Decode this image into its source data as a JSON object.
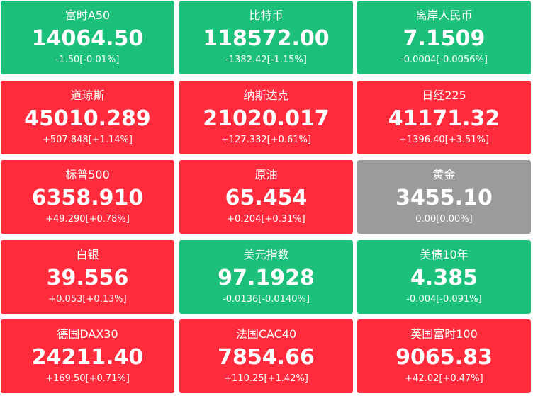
{
  "tiles": [
    {
      "name": "富时A50",
      "price": "14064.50",
      "change": "-1.50[-0.01%]",
      "trend": "down"
    },
    {
      "name": "比特币",
      "price": "118572.00",
      "change": "-1382.42[-1.15%]",
      "trend": "down"
    },
    {
      "name": "离岸人民币",
      "price": "7.1509",
      "change": "-0.0004[-0.0056%]",
      "trend": "down"
    },
    {
      "name": "道琼斯",
      "price": "45010.289",
      "change": "+507.848[+1.14%]",
      "trend": "up"
    },
    {
      "name": "纳斯达克",
      "price": "21020.017",
      "change": "+127.332[+0.61%]",
      "trend": "up"
    },
    {
      "name": "日经225",
      "price": "41171.32",
      "change": "+1396.40[+3.51%]",
      "trend": "up"
    },
    {
      "name": "标普500",
      "price": "6358.910",
      "change": "+49.290[+0.78%]",
      "trend": "up"
    },
    {
      "name": "原油",
      "price": "65.454",
      "change": "+0.204[+0.31%]",
      "trend": "up"
    },
    {
      "name": "黄金",
      "price": "3455.10",
      "change": "0.00[0.00%]",
      "trend": "flat"
    },
    {
      "name": "白银",
      "price": "39.556",
      "change": "+0.053[+0.13%]",
      "trend": "up"
    },
    {
      "name": "美元指数",
      "price": "97.1928",
      "change": "-0.0136[-0.0140%]",
      "trend": "down"
    },
    {
      "name": "美债10年",
      "price": "4.385",
      "change": "-0.004[-0.091%]",
      "trend": "down"
    },
    {
      "name": "德国DAX30",
      "price": "24211.40",
      "change": "+169.50[+0.71%]",
      "trend": "up"
    },
    {
      "name": "法国CAC40",
      "price": "7854.66",
      "change": "+110.25[+1.42%]",
      "trend": "up"
    },
    {
      "name": "英国富时100",
      "price": "9065.83",
      "change": "+42.02[+0.47%]",
      "trend": "up"
    }
  ],
  "colors": {
    "up": "#fd2b3b",
    "down": "#1dc07a",
    "flat": "#9b9b9b"
  }
}
